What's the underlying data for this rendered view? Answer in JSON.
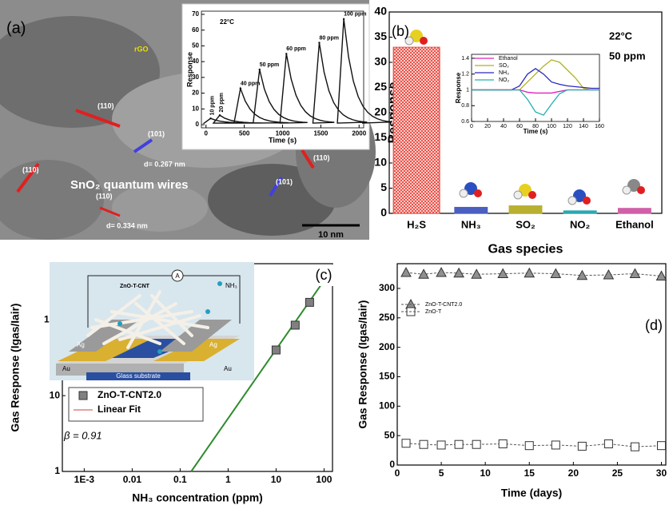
{
  "image": {
    "panel_label": "(a)",
    "rgo": "rGO",
    "plane_110": [
      "(110)",
      "(110)",
      "(110)",
      "(110)"
    ],
    "plane_101": [
      "(101)",
      "(101)"
    ],
    "d_267": "d= 0.267 nm",
    "d_334": "d= 0.334 nm",
    "caption": "SnO₂ quantum wires",
    "scale": "10 nm"
  },
  "schematic": {
    "material": "ZnO-T-CNT",
    "meter": "A",
    "gas": "NH₃",
    "ag": [
      "Ag",
      "Ag"
    ],
    "au": [
      "Au",
      "Au"
    ],
    "substrate": "Glass substrate"
  },
  "chart_data": [
    {
      "type": "pulse",
      "title": "22°C",
      "xlabel": "Time (s)",
      "ylabel": "Response",
      "x": [
        60,
        180,
        450,
        700,
        1050,
        1480,
        1800
      ],
      "values": [
        4,
        6,
        23,
        35,
        45,
        52,
        67
      ],
      "pulse_labels": [
        "10 ppm",
        "20 ppm",
        "40 ppm",
        "50 ppm",
        "60 ppm",
        "80 ppm",
        "100 ppm"
      ],
      "color": "#111111",
      "xlim": [
        -60,
        2060
      ],
      "ylim": [
        -2,
        72
      ],
      "xticks": [
        0,
        500,
        1000,
        1500,
        2000
      ],
      "yticks": [
        0,
        10,
        20,
        30,
        40,
        50,
        60,
        70
      ]
    },
    {
      "type": "bar",
      "panel_label": "(b)",
      "annotations": [
        "22°C",
        "50 ppm"
      ],
      "xlabel": "Gas species",
      "ylabel": "Response",
      "categories": [
        "H₂S",
        "NH₃",
        "SO₂",
        "NO₂",
        "Ethanol"
      ],
      "values": [
        33,
        1.2,
        1.5,
        0.5,
        1
      ],
      "colors": [
        "#e8443a",
        "#4a5fc0",
        "#b8b030",
        "#2aa8b0",
        "#d060a8"
      ],
      "ylim": [
        0,
        40
      ],
      "yticks": [
        0,
        5,
        10,
        15,
        20,
        25,
        30,
        35,
        40
      ]
    },
    {
      "type": "line",
      "xlabel": "Time (s)",
      "ylabel": "Response",
      "x": [
        0,
        10,
        20,
        30,
        40,
        50,
        60,
        70,
        80,
        90,
        100,
        110,
        120,
        130,
        140,
        150,
        160
      ],
      "series": [
        {
          "name": "Ethanol",
          "color": "#e020c0",
          "values": [
            1,
            1,
            1,
            1,
            1,
            1,
            1,
            0.97,
            0.96,
            0.96,
            0.96,
            0.98,
            1,
            1,
            1,
            1,
            1
          ]
        },
        {
          "name": "SO₂",
          "color": "#b0b020",
          "values": [
            1,
            1,
            1,
            1,
            1,
            1,
            1,
            1.1,
            1.2,
            1.3,
            1.38,
            1.35,
            1.25,
            1.15,
            1.02,
            1,
            1
          ]
        },
        {
          "name": "NH₃",
          "color": "#2828c0",
          "values": [
            1,
            1,
            1,
            1,
            1,
            1,
            1.05,
            1.2,
            1.27,
            1.2,
            1.1,
            1.07,
            1.05,
            1.04,
            1.03,
            1.02,
            1.02
          ]
        },
        {
          "name": "NO₂",
          "color": "#20b0b0",
          "values": [
            1,
            1,
            1,
            1,
            1,
            1,
            1,
            0.88,
            0.72,
            0.68,
            0.82,
            0.95,
            1,
            1,
            1,
            1,
            1
          ]
        }
      ],
      "xlim": [
        0,
        160
      ],
      "ylim": [
        0.6,
        1.45
      ],
      "xticks": [
        0,
        20,
        40,
        60,
        80,
        100,
        120,
        140,
        160
      ],
      "yticks": [
        0.6,
        0.8,
        1.0,
        1.2,
        1.4
      ]
    },
    {
      "type": "scatter",
      "panel_label": "(c)",
      "annotation": "β = 0.91",
      "xlabel": "NH₃ concentration (ppm)",
      "ylabel": "Gas Response (Igas/Iair)",
      "xlog": true,
      "ylog": true,
      "series": [
        {
          "name": "ZnO-T-CNT2.0",
          "color": "#808080",
          "marker": "square",
          "x": [
            10,
            25,
            50,
            100
          ],
          "values": [
            40,
            85,
            170,
            330
          ]
        },
        {
          "name": "Linear Fit",
          "color": "#2e8b2e",
          "legend_color": "#e08080",
          "marker": "none",
          "x": [
            0.17,
            100
          ],
          "values": [
            1,
            330
          ]
        }
      ],
      "xlim": [
        0.00035,
        150
      ],
      "ylim": [
        1,
        550
      ],
      "xticks": [
        {
          "value": 0.001,
          "label": "1E-3"
        },
        0.01,
        0.1,
        1,
        10,
        100
      ],
      "yticks": [
        1,
        10,
        100
      ]
    },
    {
      "type": "line",
      "panel_label": "(d)",
      "xlabel": "Time (days)",
      "ylabel": "Gas Response (Igas/Iair)",
      "x": [
        1,
        3,
        5,
        7,
        9,
        12,
        15,
        18,
        21,
        24,
        27,
        30
      ],
      "series": [
        {
          "name": "ZnO-T-CNT2.0",
          "color": "#909090",
          "marker": "triangle",
          "values": [
            327,
            324,
            327,
            326,
            324,
            325,
            326,
            325,
            322,
            323,
            325,
            321
          ]
        },
        {
          "name": "ZnO-T",
          "color": "#ffffff",
          "marker": "open-square",
          "values": [
            37,
            35,
            34,
            35,
            35,
            36,
            33,
            34,
            32,
            36,
            31,
            33
          ]
        }
      ],
      "xlim": [
        0,
        30.5
      ],
      "ylim": [
        0,
        342
      ],
      "xticks": [
        0,
        5,
        10,
        15,
        20,
        25,
        30
      ],
      "yticks": [
        0,
        50,
        100,
        150,
        200,
        250,
        300
      ]
    }
  ]
}
